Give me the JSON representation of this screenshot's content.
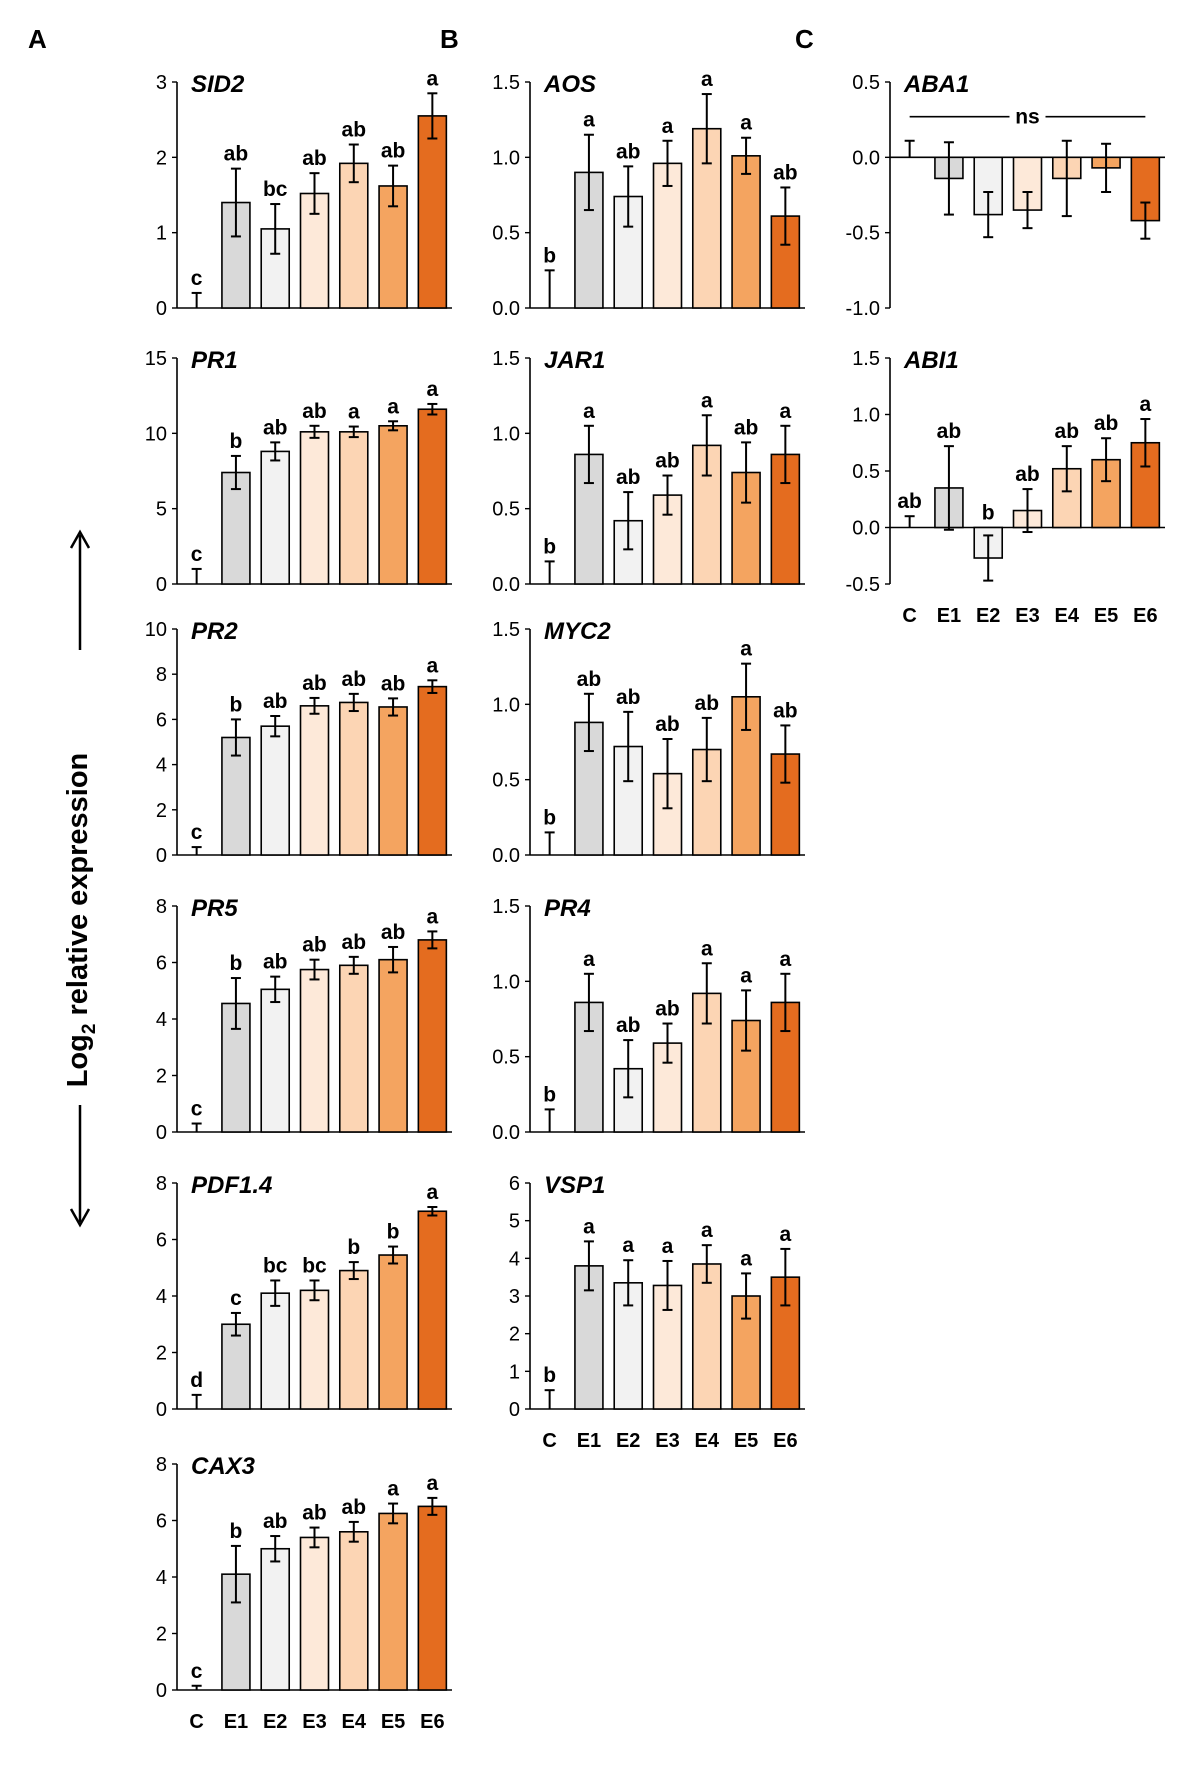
{
  "colors": {
    "C": "#ffffff",
    "E1": "#d9d9d9",
    "E2": "#f2f2f2",
    "E3": "#fde9d9",
    "E4": "#fcd5b4",
    "E5": "#f4a460",
    "E6": "#e46c1f",
    "stroke": "#000000"
  },
  "figure": {
    "ylabel_main": "Log",
    "ylabel_sub": "2",
    "ylabel_rest": " relative expression",
    "panel_letters": [
      "A",
      "B",
      "C"
    ]
  },
  "chart_data": [
    {
      "type": "bar",
      "panel": "A",
      "title": "SID2",
      "categories": [
        "C",
        "E1",
        "E2",
        "E3",
        "E4",
        "E5",
        "E6"
      ],
      "values": [
        0,
        1.4,
        1.05,
        1.52,
        1.92,
        1.62,
        2.55
      ],
      "errors": [
        0.2,
        0.45,
        0.33,
        0.27,
        0.25,
        0.27,
        0.3
      ],
      "letters": [
        "c",
        "ab",
        "bc",
        "ab",
        "ab",
        "ab",
        "a"
      ],
      "ylim": [
        0,
        3
      ],
      "ticks": [
        0,
        1,
        2,
        3
      ],
      "tick_labels": [
        "0",
        "1",
        "2",
        "3"
      ]
    },
    {
      "type": "bar",
      "panel": "A",
      "title": "PR1",
      "categories": [
        "C",
        "E1",
        "E2",
        "E3",
        "E4",
        "E5",
        "E6"
      ],
      "values": [
        0,
        7.4,
        8.8,
        10.1,
        10.1,
        10.5,
        11.6
      ],
      "errors": [
        1.0,
        1.1,
        0.6,
        0.4,
        0.35,
        0.3,
        0.35
      ],
      "letters": [
        "c",
        "b",
        "ab",
        "ab",
        "a",
        "a",
        "a"
      ],
      "ylim": [
        0,
        15
      ],
      "ticks": [
        0,
        5,
        10,
        15
      ],
      "tick_labels": [
        "0",
        "5",
        "10",
        "15"
      ]
    },
    {
      "type": "bar",
      "panel": "A",
      "title": "PR2",
      "categories": [
        "C",
        "E1",
        "E2",
        "E3",
        "E4",
        "E5",
        "E6"
      ],
      "values": [
        0,
        5.2,
        5.7,
        6.6,
        6.75,
        6.55,
        7.45
      ],
      "errors": [
        0.35,
        0.8,
        0.45,
        0.35,
        0.38,
        0.38,
        0.28
      ],
      "letters": [
        "c",
        "b",
        "ab",
        "ab",
        "ab",
        "ab",
        "a"
      ],
      "ylim": [
        0,
        10
      ],
      "ticks": [
        0,
        2,
        4,
        6,
        8,
        10
      ],
      "tick_labels": [
        "0",
        "2",
        "4",
        "6",
        "8",
        "10"
      ]
    },
    {
      "type": "bar",
      "panel": "A",
      "title": "PR5",
      "categories": [
        "C",
        "E1",
        "E2",
        "E3",
        "E4",
        "E5",
        "E6"
      ],
      "values": [
        0,
        4.55,
        5.05,
        5.75,
        5.9,
        6.1,
        6.8
      ],
      "errors": [
        0.3,
        0.9,
        0.45,
        0.35,
        0.3,
        0.45,
        0.3
      ],
      "letters": [
        "c",
        "b",
        "ab",
        "ab",
        "ab",
        "ab",
        "a"
      ],
      "ylim": [
        0,
        8
      ],
      "ticks": [
        0,
        2,
        4,
        6,
        8
      ],
      "tick_labels": [
        "0",
        "2",
        "4",
        "6",
        "8"
      ]
    },
    {
      "type": "bar",
      "panel": "A",
      "title": "PDF1.4",
      "categories": [
        "C",
        "E1",
        "E2",
        "E3",
        "E4",
        "E5",
        "E6"
      ],
      "values": [
        0,
        3.0,
        4.1,
        4.2,
        4.9,
        5.45,
        7.0
      ],
      "errors": [
        0.5,
        0.4,
        0.45,
        0.35,
        0.3,
        0.3,
        0.15
      ],
      "letters": [
        "d",
        "c",
        "bc",
        "bc",
        "b",
        "b",
        "a"
      ],
      "ylim": [
        0,
        8
      ],
      "ticks": [
        0,
        2,
        4,
        6,
        8
      ],
      "tick_labels": [
        "0",
        "2",
        "4",
        "6",
        "8"
      ]
    },
    {
      "type": "bar",
      "panel": "A",
      "title": "CAX3",
      "categories": [
        "C",
        "E1",
        "E2",
        "E3",
        "E4",
        "E5",
        "E6"
      ],
      "values": [
        0,
        4.1,
        5.0,
        5.4,
        5.6,
        6.25,
        6.5
      ],
      "errors": [
        0.15,
        1.0,
        0.45,
        0.35,
        0.35,
        0.35,
        0.3
      ],
      "letters": [
        "c",
        "b",
        "ab",
        "ab",
        "ab",
        "a",
        "a"
      ],
      "ylim": [
        0,
        8
      ],
      "ticks": [
        0,
        2,
        4,
        6,
        8
      ],
      "tick_labels": [
        "0",
        "2",
        "4",
        "6",
        "8"
      ],
      "show_categories": true
    },
    {
      "type": "bar",
      "panel": "B",
      "title": "AOS",
      "categories": [
        "C",
        "E1",
        "E2",
        "E3",
        "E4",
        "E5",
        "E6"
      ],
      "values": [
        0,
        0.9,
        0.74,
        0.96,
        1.19,
        1.01,
        0.61
      ],
      "errors": [
        0.25,
        0.25,
        0.2,
        0.15,
        0.23,
        0.12,
        0.19
      ],
      "letters": [
        "b",
        "a",
        "ab",
        "a",
        "a",
        "a",
        "ab"
      ],
      "ylim": [
        0,
        1.5
      ],
      "ticks": [
        0,
        0.5,
        1.0,
        1.5
      ],
      "tick_labels": [
        "0.0",
        "0.5",
        "1.0",
        "1.5"
      ]
    },
    {
      "type": "bar",
      "panel": "B",
      "title": "JAR1",
      "categories": [
        "C",
        "E1",
        "E2",
        "E3",
        "E4",
        "E5",
        "E6"
      ],
      "values": [
        0,
        0.86,
        0.42,
        0.59,
        0.92,
        0.74,
        0.86
      ],
      "errors": [
        0.15,
        0.19,
        0.19,
        0.13,
        0.2,
        0.2,
        0.19
      ],
      "letters": [
        "b",
        "a",
        "ab",
        "ab",
        "a",
        "ab",
        "a"
      ],
      "ylim": [
        0,
        1.5
      ],
      "ticks": [
        0,
        0.5,
        1.0,
        1.5
      ],
      "tick_labels": [
        "0.0",
        "0.5",
        "1.0",
        "1.5"
      ]
    },
    {
      "type": "bar",
      "panel": "B",
      "title": "MYC2",
      "categories": [
        "C",
        "E1",
        "E2",
        "E3",
        "E4",
        "E5",
        "E6"
      ],
      "values": [
        0,
        0.88,
        0.72,
        0.54,
        0.7,
        1.05,
        0.67
      ],
      "errors": [
        0.15,
        0.19,
        0.23,
        0.23,
        0.21,
        0.22,
        0.19
      ],
      "letters": [
        "b",
        "ab",
        "ab",
        "ab",
        "ab",
        "a",
        "ab"
      ],
      "ylim": [
        0,
        1.5
      ],
      "ticks": [
        0,
        0.5,
        1.0,
        1.5
      ],
      "tick_labels": [
        "0.0",
        "0.5",
        "1.0",
        "1.5"
      ]
    },
    {
      "type": "bar",
      "panel": "B",
      "title": "PR4",
      "categories": [
        "C",
        "E1",
        "E2",
        "E3",
        "E4",
        "E5",
        "E6"
      ],
      "values": [
        0,
        0.86,
        0.42,
        0.59,
        0.92,
        0.74,
        0.86
      ],
      "errors": [
        0.15,
        0.19,
        0.19,
        0.13,
        0.2,
        0.2,
        0.19
      ],
      "letters": [
        "b",
        "a",
        "ab",
        "ab",
        "a",
        "a",
        "a"
      ],
      "ylim": [
        0,
        1.5
      ],
      "ticks": [
        0,
        0.5,
        1.0,
        1.5
      ],
      "tick_labels": [
        "0.0",
        "0.5",
        "1.0",
        "1.5"
      ]
    },
    {
      "type": "bar",
      "panel": "B",
      "title": "VSP1",
      "categories": [
        "C",
        "E1",
        "E2",
        "E3",
        "E4",
        "E5",
        "E6"
      ],
      "values": [
        0,
        3.8,
        3.35,
        3.28,
        3.85,
        3.0,
        3.5
      ],
      "errors": [
        0.5,
        0.65,
        0.6,
        0.65,
        0.5,
        0.6,
        0.75
      ],
      "letters": [
        "b",
        "a",
        "a",
        "a",
        "a",
        "a",
        "a"
      ],
      "ylim": [
        0,
        6
      ],
      "ticks": [
        0,
        1,
        2,
        3,
        4,
        5,
        6
      ],
      "tick_labels": [
        "0",
        "1",
        "2",
        "3",
        "4",
        "5",
        "6"
      ],
      "show_categories": true
    },
    {
      "type": "bar",
      "panel": "C",
      "title": "ABA1",
      "categories": [
        "C",
        "E1",
        "E2",
        "E3",
        "E4",
        "E5",
        "E6"
      ],
      "values": [
        0,
        -0.14,
        -0.38,
        -0.35,
        -0.14,
        -0.07,
        -0.42
      ],
      "errors": [
        0.11,
        0.24,
        0.15,
        0.12,
        0.25,
        0.16,
        0.12
      ],
      "letters": [
        "",
        "",
        "",
        "",
        "",
        "",
        ""
      ],
      "annotation": "ns",
      "ylim": [
        -1.0,
        0.5
      ],
      "ticks": [
        -1.0,
        -0.5,
        0,
        0.5
      ],
      "tick_labels": [
        "-1.0",
        "-0.5",
        "0.0",
        "0.5"
      ]
    },
    {
      "type": "bar",
      "panel": "C",
      "title": "ABI1",
      "categories": [
        "C",
        "E1",
        "E2",
        "E3",
        "E4",
        "E5",
        "E6"
      ],
      "values": [
        0,
        0.35,
        -0.27,
        0.15,
        0.52,
        0.6,
        0.75
      ],
      "errors": [
        0.1,
        0.37,
        0.2,
        0.19,
        0.2,
        0.19,
        0.21
      ],
      "letters": [
        "ab",
        "ab",
        "b",
        "ab",
        "ab",
        "ab",
        "a"
      ],
      "ylim": [
        -0.5,
        1.5
      ],
      "ticks": [
        -0.5,
        0,
        0.5,
        1.0,
        1.5
      ],
      "tick_labels": [
        "-0.5",
        "0.0",
        "0.5",
        "1.0",
        "1.5"
      ],
      "show_categories": true
    }
  ]
}
